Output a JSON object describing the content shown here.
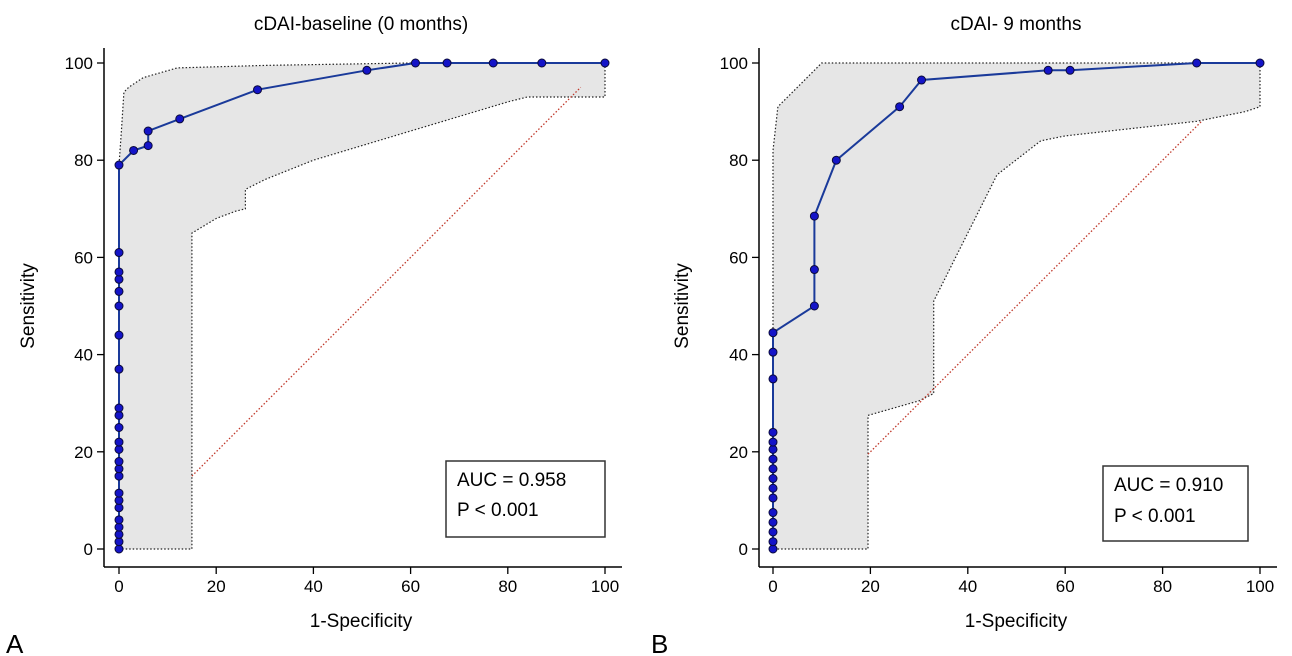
{
  "chart_data": [
    {
      "panel_label": "A",
      "type": "line",
      "title": "cDAI-baseline (0 months)",
      "xlabel": "1-Specificity",
      "ylabel": "Sensitivity",
      "xlim": [
        0,
        100
      ],
      "ylim": [
        0,
        100
      ],
      "xticks": [
        "0",
        "20",
        "40",
        "60",
        "80",
        "100"
      ],
      "yticks": [
        "0",
        "20",
        "40",
        "60",
        "80",
        "100"
      ],
      "annotation": [
        "AUC = 0.958",
        "P < 0.001"
      ],
      "colors": {
        "roc": "#1a3a9a",
        "point": "#1414c8",
        "reference": "#c0392b",
        "band": "#e6e6e6"
      },
      "roc": [
        [
          0,
          0
        ],
        [
          0,
          1.5
        ],
        [
          0,
          3
        ],
        [
          0,
          4.5
        ],
        [
          0,
          6
        ],
        [
          0,
          8.5
        ],
        [
          0,
          10
        ],
        [
          0,
          11.5
        ],
        [
          0,
          15
        ],
        [
          0,
          16.5
        ],
        [
          0,
          18
        ],
        [
          0,
          20.5
        ],
        [
          0,
          22
        ],
        [
          0,
          25
        ],
        [
          0,
          27.5
        ],
        [
          0,
          29
        ],
        [
          0,
          37
        ],
        [
          0,
          44
        ],
        [
          0,
          50
        ],
        [
          0,
          53
        ],
        [
          0,
          55.5
        ],
        [
          0,
          57
        ],
        [
          0,
          61
        ],
        [
          0,
          79
        ],
        [
          3,
          82
        ],
        [
          6,
          83
        ],
        [
          6,
          86
        ],
        [
          12.5,
          88.5
        ],
        [
          28.5,
          94.5
        ],
        [
          51,
          98.5
        ],
        [
          61,
          100
        ],
        [
          67.5,
          100
        ],
        [
          77,
          100
        ],
        [
          87,
          100
        ],
        [
          100,
          100
        ]
      ],
      "ci_upper": [
        [
          0,
          0
        ],
        [
          0,
          79
        ],
        [
          0.5,
          86
        ],
        [
          1,
          94
        ],
        [
          2,
          95
        ],
        [
          5,
          97
        ],
        [
          12,
          99
        ],
        [
          30,
          99.5
        ],
        [
          60,
          100
        ],
        [
          100,
          100
        ]
      ],
      "ci_lower": [
        [
          100,
          100
        ],
        [
          100,
          93
        ],
        [
          84,
          93
        ],
        [
          80,
          92
        ],
        [
          60,
          86
        ],
        [
          50,
          83
        ],
        [
          40,
          80
        ],
        [
          30,
          76
        ],
        [
          26,
          74
        ],
        [
          26,
          70
        ],
        [
          24,
          69.5
        ],
        [
          20,
          68
        ],
        [
          15,
          65
        ],
        [
          15,
          0
        ],
        [
          0,
          0
        ]
      ],
      "reference": [
        [
          15,
          15
        ],
        [
          95,
          95
        ]
      ]
    },
    {
      "panel_label": "B",
      "type": "line",
      "title": "cDAI- 9 months",
      "xlabel": "1-Specificity",
      "ylabel": "Sensitivity",
      "xlim": [
        0,
        100
      ],
      "ylim": [
        0,
        100
      ],
      "xticks": [
        "0",
        "20",
        "40",
        "60",
        "80",
        "100"
      ],
      "yticks": [
        "0",
        "20",
        "40",
        "60",
        "80",
        "100"
      ],
      "annotation": [
        "AUC = 0.910",
        "P < 0.001"
      ],
      "colors": {
        "roc": "#1a3a9a",
        "point": "#1414c8",
        "reference": "#c0392b",
        "band": "#e6e6e6"
      },
      "roc": [
        [
          0,
          0
        ],
        [
          0,
          1.5
        ],
        [
          0,
          3.5
        ],
        [
          0,
          5.5
        ],
        [
          0,
          7.5
        ],
        [
          0,
          10.5
        ],
        [
          0,
          12.5
        ],
        [
          0,
          14.5
        ],
        [
          0,
          16.5
        ],
        [
          0,
          18.5
        ],
        [
          0,
          20.5
        ],
        [
          0,
          22
        ],
        [
          0,
          24
        ],
        [
          0,
          35
        ],
        [
          0,
          40.5
        ],
        [
          0,
          44.5
        ],
        [
          8.5,
          50
        ],
        [
          8.5,
          57.5
        ],
        [
          8.5,
          68.5
        ],
        [
          13,
          80
        ],
        [
          26,
          91
        ],
        [
          30.5,
          96.5
        ],
        [
          56.5,
          98.5
        ],
        [
          61,
          98.5
        ],
        [
          87,
          100
        ],
        [
          100,
          100
        ]
      ],
      "ci_upper": [
        [
          0,
          0
        ],
        [
          0,
          82
        ],
        [
          1,
          91
        ],
        [
          5,
          95
        ],
        [
          10,
          100
        ],
        [
          100,
          100
        ]
      ],
      "ci_lower": [
        [
          100,
          100
        ],
        [
          100,
          91
        ],
        [
          97,
          90
        ],
        [
          87,
          88
        ],
        [
          60,
          85
        ],
        [
          55,
          84
        ],
        [
          46,
          77
        ],
        [
          39,
          63
        ],
        [
          33,
          51
        ],
        [
          33,
          32
        ],
        [
          30,
          30.5
        ],
        [
          19.5,
          27.5
        ],
        [
          19.5,
          0
        ],
        [
          0,
          0
        ]
      ],
      "reference": [
        [
          19.5,
          19.5
        ],
        [
          88,
          88
        ]
      ]
    }
  ]
}
